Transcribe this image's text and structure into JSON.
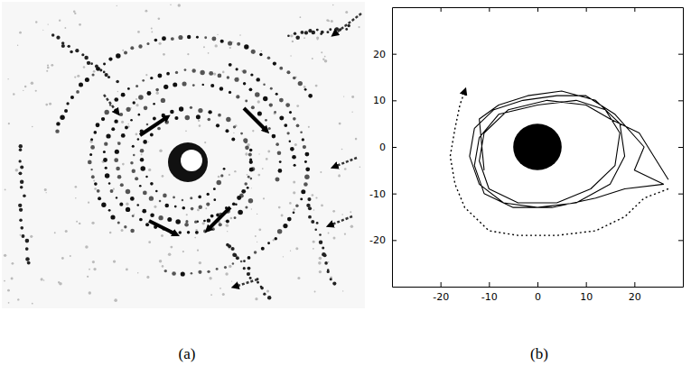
{
  "chart_data": [
    {
      "type": "image",
      "label": "(a)"
    },
    {
      "type": "line",
      "label": "(b)",
      "xlim": [
        -30,
        30
      ],
      "ylim": [
        -30,
        30
      ],
      "xticks": [
        -20,
        -10,
        0,
        10,
        20
      ],
      "yticks": [
        -20,
        -10,
        0,
        10,
        20
      ],
      "series": [
        {
          "type": "line",
          "line_style": "solid",
          "color": "#000000",
          "x": [
            -11,
            -12,
            -8,
            -2,
            5,
            12,
            17,
            18,
            15,
            8,
            0,
            -7,
            -12,
            -14,
            -13,
            -9,
            -3,
            4,
            10,
            16,
            22,
            20,
            26,
            18,
            12,
            3,
            -5,
            -11,
            -13,
            -12,
            -8,
            0,
            8,
            14,
            17,
            16,
            11,
            4,
            -4,
            -10,
            -12,
            -11,
            -6,
            2,
            10,
            15,
            21,
            27
          ],
          "values": [
            -5,
            6,
            9,
            11,
            12,
            10,
            5,
            -2,
            -8,
            -12,
            -13,
            -12,
            -8,
            -2,
            4,
            8,
            10,
            11,
            11,
            7,
            0,
            -5,
            -8,
            -9,
            -11,
            -13,
            -13,
            -10,
            -4,
            2,
            7,
            9,
            10,
            8,
            3,
            -4,
            -9,
            -12,
            -12,
            -9,
            -3,
            3,
            8,
            10,
            9,
            6,
            3,
            -7
          ]
        },
        {
          "type": "line",
          "line_style": "dotted",
          "color": "#000000",
          "x": [
            27,
            22,
            18,
            12,
            4,
            -4,
            -10,
            -15,
            -17,
            -18,
            -17,
            -16,
            -15
          ],
          "values": [
            -9,
            -11,
            -15,
            -18,
            -19,
            -19,
            -18,
            -13,
            -8,
            -2,
            4,
            9,
            12
          ]
        },
        {
          "type": "bubble",
          "color": "#000000",
          "x": [
            0
          ],
          "values": [
            0
          ],
          "size": [
            5
          ]
        }
      ]
    }
  ]
}
